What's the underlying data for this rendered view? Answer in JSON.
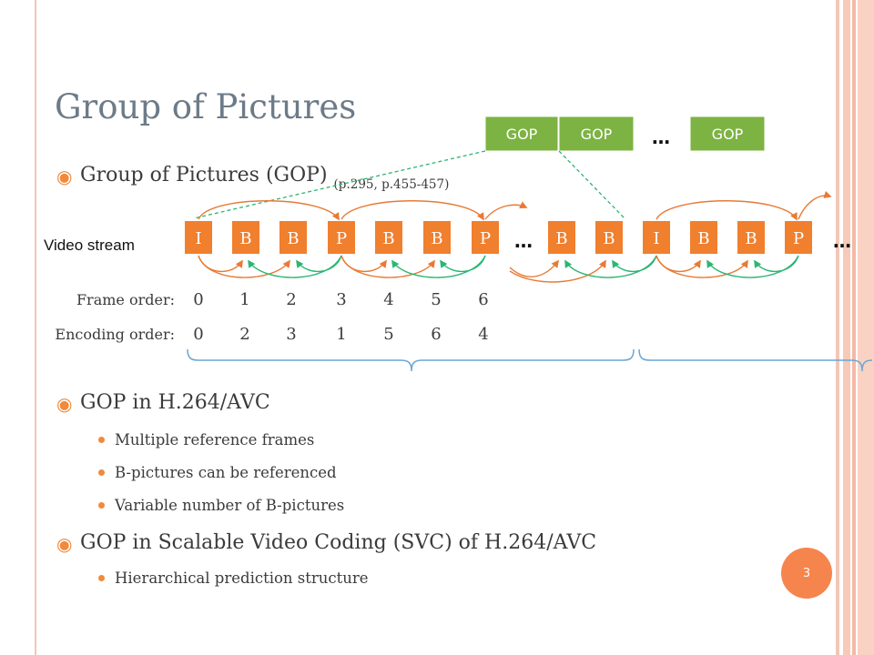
{
  "slide": {
    "title": "Group of Pictures",
    "page_number": "3"
  },
  "bullets": {
    "b1": {
      "text": "Group of Pictures (GOP)",
      "ref": "(p.295, p.455-457)"
    },
    "b2": {
      "text": "GOP in H.264/AVC"
    },
    "b2_sub": [
      "Multiple reference frames",
      "B-pictures can be referenced",
      "Variable number of B-pictures"
    ],
    "b3": {
      "text": "GOP in Scalable Video Coding (SVC) of H.264/AVC"
    },
    "b3_sub": [
      "Hierarchical prediction structure"
    ]
  },
  "diagram": {
    "gop_boxes": [
      "GOP",
      "GOP",
      "GOP"
    ],
    "gop_ellipsis": "…",
    "video_stream_label": "Video stream",
    "frames_group1": [
      "I",
      "B",
      "B",
      "P",
      "B",
      "B",
      "P"
    ],
    "frames_group2": [
      "B",
      "B",
      "I",
      "B",
      "B",
      "P"
    ],
    "stream_ellipsis": "…",
    "frame_order_label": "Frame order:",
    "frame_order": [
      "0",
      "1",
      "2",
      "3",
      "4",
      "5",
      "6"
    ],
    "encoding_order_label": "Encoding order:",
    "encoding_order": [
      "0",
      "2",
      "3",
      "1",
      "5",
      "6",
      "4"
    ],
    "colors": {
      "frame_fill": "#f07f2e",
      "gop_fill": "#7cb342",
      "forward_arrow": "#e87a35",
      "backward_arrow": "#2bb673",
      "dashed_line": "#2bb673",
      "brace": "#6aa6d6"
    }
  }
}
